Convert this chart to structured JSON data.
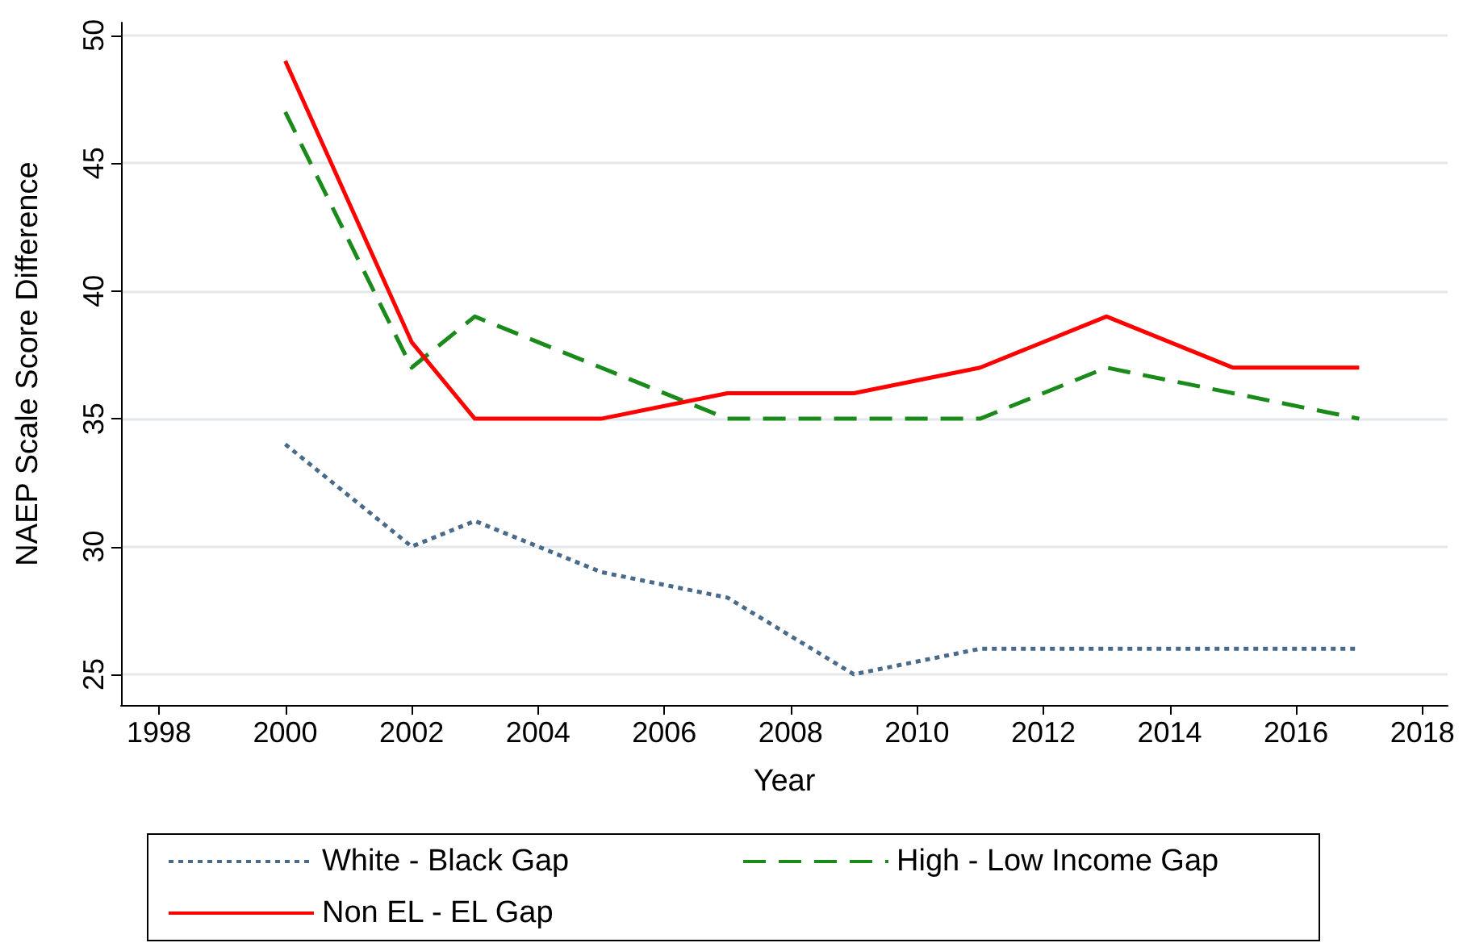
{
  "chart_data": {
    "type": "line",
    "xlabel": "Year",
    "ylabel": "NAEP Scale Score Difference",
    "x": [
      2000,
      2002,
      2003,
      2005,
      2007,
      2009,
      2011,
      2013,
      2015,
      2017
    ],
    "series": [
      {
        "name": "White - Black Gap",
        "color": "#4a6a8a",
        "line_style": "dotted",
        "values": [
          34,
          30,
          31,
          29,
          28,
          25,
          26,
          26,
          26,
          26
        ]
      },
      {
        "name": "High - Low Income Gap",
        "color": "#1a8a1a",
        "line_style": "dashed",
        "values": [
          47,
          37,
          39,
          37,
          35,
          35,
          35,
          37,
          36,
          35
        ]
      },
      {
        "name": "Non EL - EL Gap",
        "color": "#ff0000",
        "line_style": "solid",
        "values": [
          49,
          38,
          35,
          35,
          36,
          36,
          37,
          39,
          37,
          37
        ]
      }
    ],
    "xlim": [
      1997.4,
      2018.4
    ],
    "xticks": [
      1998,
      2000,
      2002,
      2004,
      2006,
      2008,
      2010,
      2012,
      2014,
      2016,
      2018
    ],
    "ylim": [
      23.8,
      50.5
    ],
    "yticks": [
      25,
      30,
      35,
      40,
      45,
      50
    ],
    "grid": "y",
    "legend": "bottom",
    "marker": "none"
  }
}
